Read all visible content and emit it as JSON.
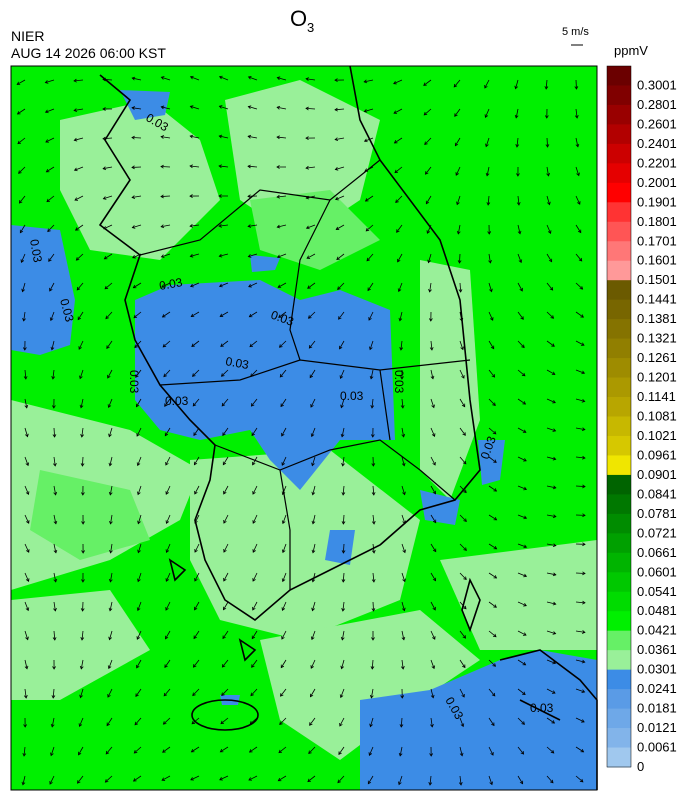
{
  "header": {
    "title": {
      "text": "O",
      "subscript": "3"
    },
    "agency": "NIER",
    "timestamp": "AUG 14 2026 06:00 KST",
    "wind_scale": "5 m/s",
    "unit": "ppmV"
  },
  "colorbar": {
    "labels": [
      0.3001,
      0.2801,
      0.2601,
      0.2401,
      0.2201,
      0.2001,
      0.1901,
      0.1801,
      0.1701,
      0.1601,
      0.1501,
      0.1441,
      0.1381,
      0.1321,
      0.1261,
      0.1201,
      0.1141,
      0.1081,
      0.1021,
      0.0961,
      0.0901,
      0.0841,
      0.0781,
      0.0721,
      0.0661,
      0.0601,
      0.0541,
      0.0481,
      0.0421,
      0.0361,
      0.0301,
      0.0241,
      0.0181,
      0.0121,
      0.0061,
      0
    ],
    "colors": [
      "#6b0000",
      "#800000",
      "#990000",
      "#b20000",
      "#cc0000",
      "#e50000",
      "#ff0000",
      "#ff3333",
      "#ff5555",
      "#ff7777",
      "#ff9999",
      "#6b5a00",
      "#786600",
      "#857300",
      "#917f00",
      "#9e8c00",
      "#ab9900",
      "#b8a600",
      "#c7b800",
      "#d6c800",
      "#f0e600",
      "#006400",
      "#007800",
      "#008c00",
      "#00a000",
      "#00b400",
      "#00c800",
      "#00dc00",
      "#00f000",
      "#66f066",
      "#99f099",
      "#3c8ce6",
      "#5a9be6",
      "#6ea8e8",
      "#82b4ea",
      "#a0c8ee"
    ]
  },
  "contour_labels": [
    "0.03",
    "0.03",
    "0.03",
    "0.03",
    "0.03",
    "0.03",
    "0.03",
    "0.03",
    "0.03",
    "0.03",
    "0.03",
    "0.03",
    "0.03"
  ]
}
